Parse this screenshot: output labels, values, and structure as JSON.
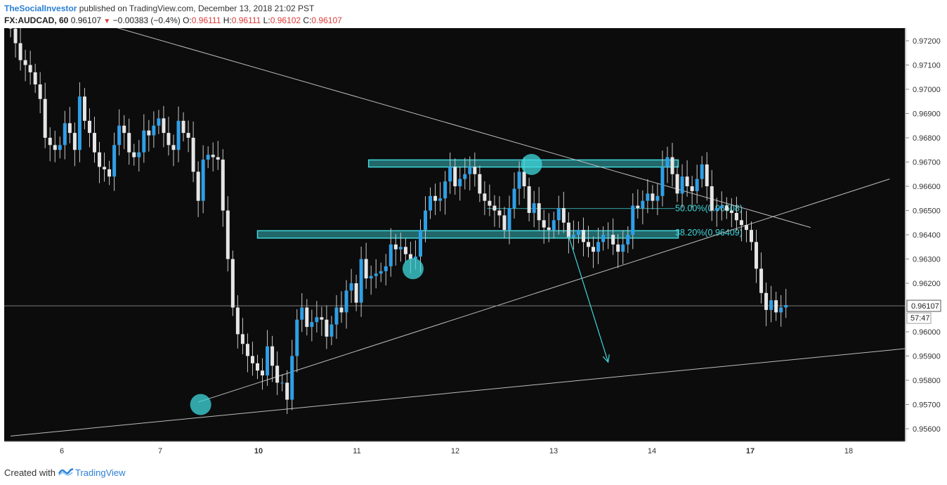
{
  "header": {
    "author": "TheSocialInvestor",
    "published_text": "published on TradingView.com, December 13, 2018 21:02 PST",
    "symbol": "FX:AUDCAD, 60",
    "last": "0.96107",
    "change": "−0.00383 (−0.4%)",
    "o_label": "O:",
    "o_value": "0.96111",
    "h_label": "H:",
    "h_value": "0.96111",
    "l_label": "L:",
    "l_value": "0.96102",
    "c_label": "C:",
    "c_value": "0.96107"
  },
  "footer": {
    "created_with": "Created with",
    "brand": "TradingView"
  },
  "colors": {
    "background": "#0c0c0c",
    "up_candle": "#2f9fe6",
    "down_candle": "#e6e6e6",
    "accent": "#3fd8dd",
    "text_light": "#d0d0d0",
    "axis_bg": "#ffffff"
  },
  "chart_data": {
    "type": "candlestick",
    "symbol": "FX:AUDCAD",
    "timeframe": "60",
    "y_ticks": [
      "0.97200",
      "0.97100",
      "0.97000",
      "0.96900",
      "0.96800",
      "0.96700",
      "0.96600",
      "0.96500",
      "0.96400",
      "0.96300",
      "0.96200",
      "0.96000",
      "0.95900",
      "0.95800",
      "0.95700",
      "0.95600"
    ],
    "x_ticks": [
      "6",
      "7",
      "10",
      "11",
      "12",
      "13",
      "14",
      "17",
      "18"
    ],
    "ylim": [
      0.9553,
      0.9728
    ],
    "last_price": "0.96107",
    "countdown": "57:47",
    "closes": [
      0.9725,
      0.9719,
      0.9712,
      0.971,
      0.9707,
      0.9702,
      0.9696,
      0.968,
      0.9677,
      0.9675,
      0.9677,
      0.9686,
      0.9682,
      0.9675,
      0.9697,
      0.9687,
      0.9682,
      0.9674,
      0.9668,
      0.9667,
      0.9664,
      0.9677,
      0.9685,
      0.9682,
      0.9674,
      0.9672,
      0.9674,
      0.9683,
      0.9681,
      0.9685,
      0.9688,
      0.9682,
      0.9677,
      0.9675,
      0.9687,
      0.9682,
      0.968,
      0.9666,
      0.9654,
      0.9671,
      0.9673,
      0.9672,
      0.9671,
      0.965,
      0.963,
      0.961,
      0.9599,
      0.9595,
      0.959,
      0.9587,
      0.9584,
      0.9582,
      0.9594,
      0.9586,
      0.9579,
      0.9579,
      0.9572,
      0.959,
      0.9605,
      0.961,
      0.9602,
      0.9604,
      0.9606,
      0.9605,
      0.9598,
      0.9603,
      0.961,
      0.9608,
      0.9617,
      0.962,
      0.9612,
      0.963,
      0.9622,
      0.9623,
      0.9624,
      0.9625,
      0.9627,
      0.9636,
      0.9634,
      0.9635,
      0.9632,
      0.963,
      0.9631,
      0.9642,
      0.965,
      0.9656,
      0.9654,
      0.9655,
      0.9662,
      0.9668,
      0.966,
      0.9663,
      0.9665,
      0.9668,
      0.9665,
      0.9657,
      0.9654,
      0.9652,
      0.965,
      0.9648,
      0.9642,
      0.9651,
      0.9659,
      0.9666,
      0.966,
      0.9649,
      0.9653,
      0.9646,
      0.9643,
      0.9642,
      0.9646,
      0.9651,
      0.9645,
      0.9639,
      0.964,
      0.9642,
      0.9637,
      0.9635,
      0.9633,
      0.9637,
      0.964,
      0.964,
      0.9636,
      0.9633,
      0.9636,
      0.964,
      0.9652,
      0.9651,
      0.9654,
      0.9657,
      0.9654,
      0.9656,
      0.9668,
      0.9672,
      0.9665,
      0.9657,
      0.9664,
      0.966,
      0.9658,
      0.9663,
      0.9669,
      0.966,
      0.965,
      0.9651,
      0.9652,
      0.965,
      0.9649,
      0.9646,
      0.9644,
      0.9642,
      0.9637,
      0.9626,
      0.9616,
      0.9609,
      0.9613,
      0.9608,
      0.961,
      0.9611
    ],
    "support_zone": [
      0.96395,
      0.96408
    ],
    "resistance_zone": [
      0.96688,
      0.967
    ],
    "fib_levels": [
      {
        "label": "50.00%(0.96508)",
        "value": 0.96508
      },
      {
        "label": "38.20%(0.96409)",
        "value": 0.96409
      }
    ],
    "trendlines": [
      {
        "from": [
          0,
          0.9738
        ],
        "to": [
          162,
          0.9643
        ]
      },
      {
        "from": [
          38,
          0.9571
        ],
        "to": [
          178,
          0.9663
        ]
      },
      {
        "from": [
          0,
          0.9557
        ],
        "to": [
          196,
          0.9596
        ]
      }
    ],
    "circles": [
      {
        "x": 38.5,
        "y": 0.957
      },
      {
        "x": 81.5,
        "y": 0.9626
      },
      {
        "x": 105.5,
        "y": 0.9669
      }
    ],
    "arrow": {
      "from": [
        113,
        0.96395
      ],
      "to": [
        121,
        0.95875
      ]
    }
  }
}
